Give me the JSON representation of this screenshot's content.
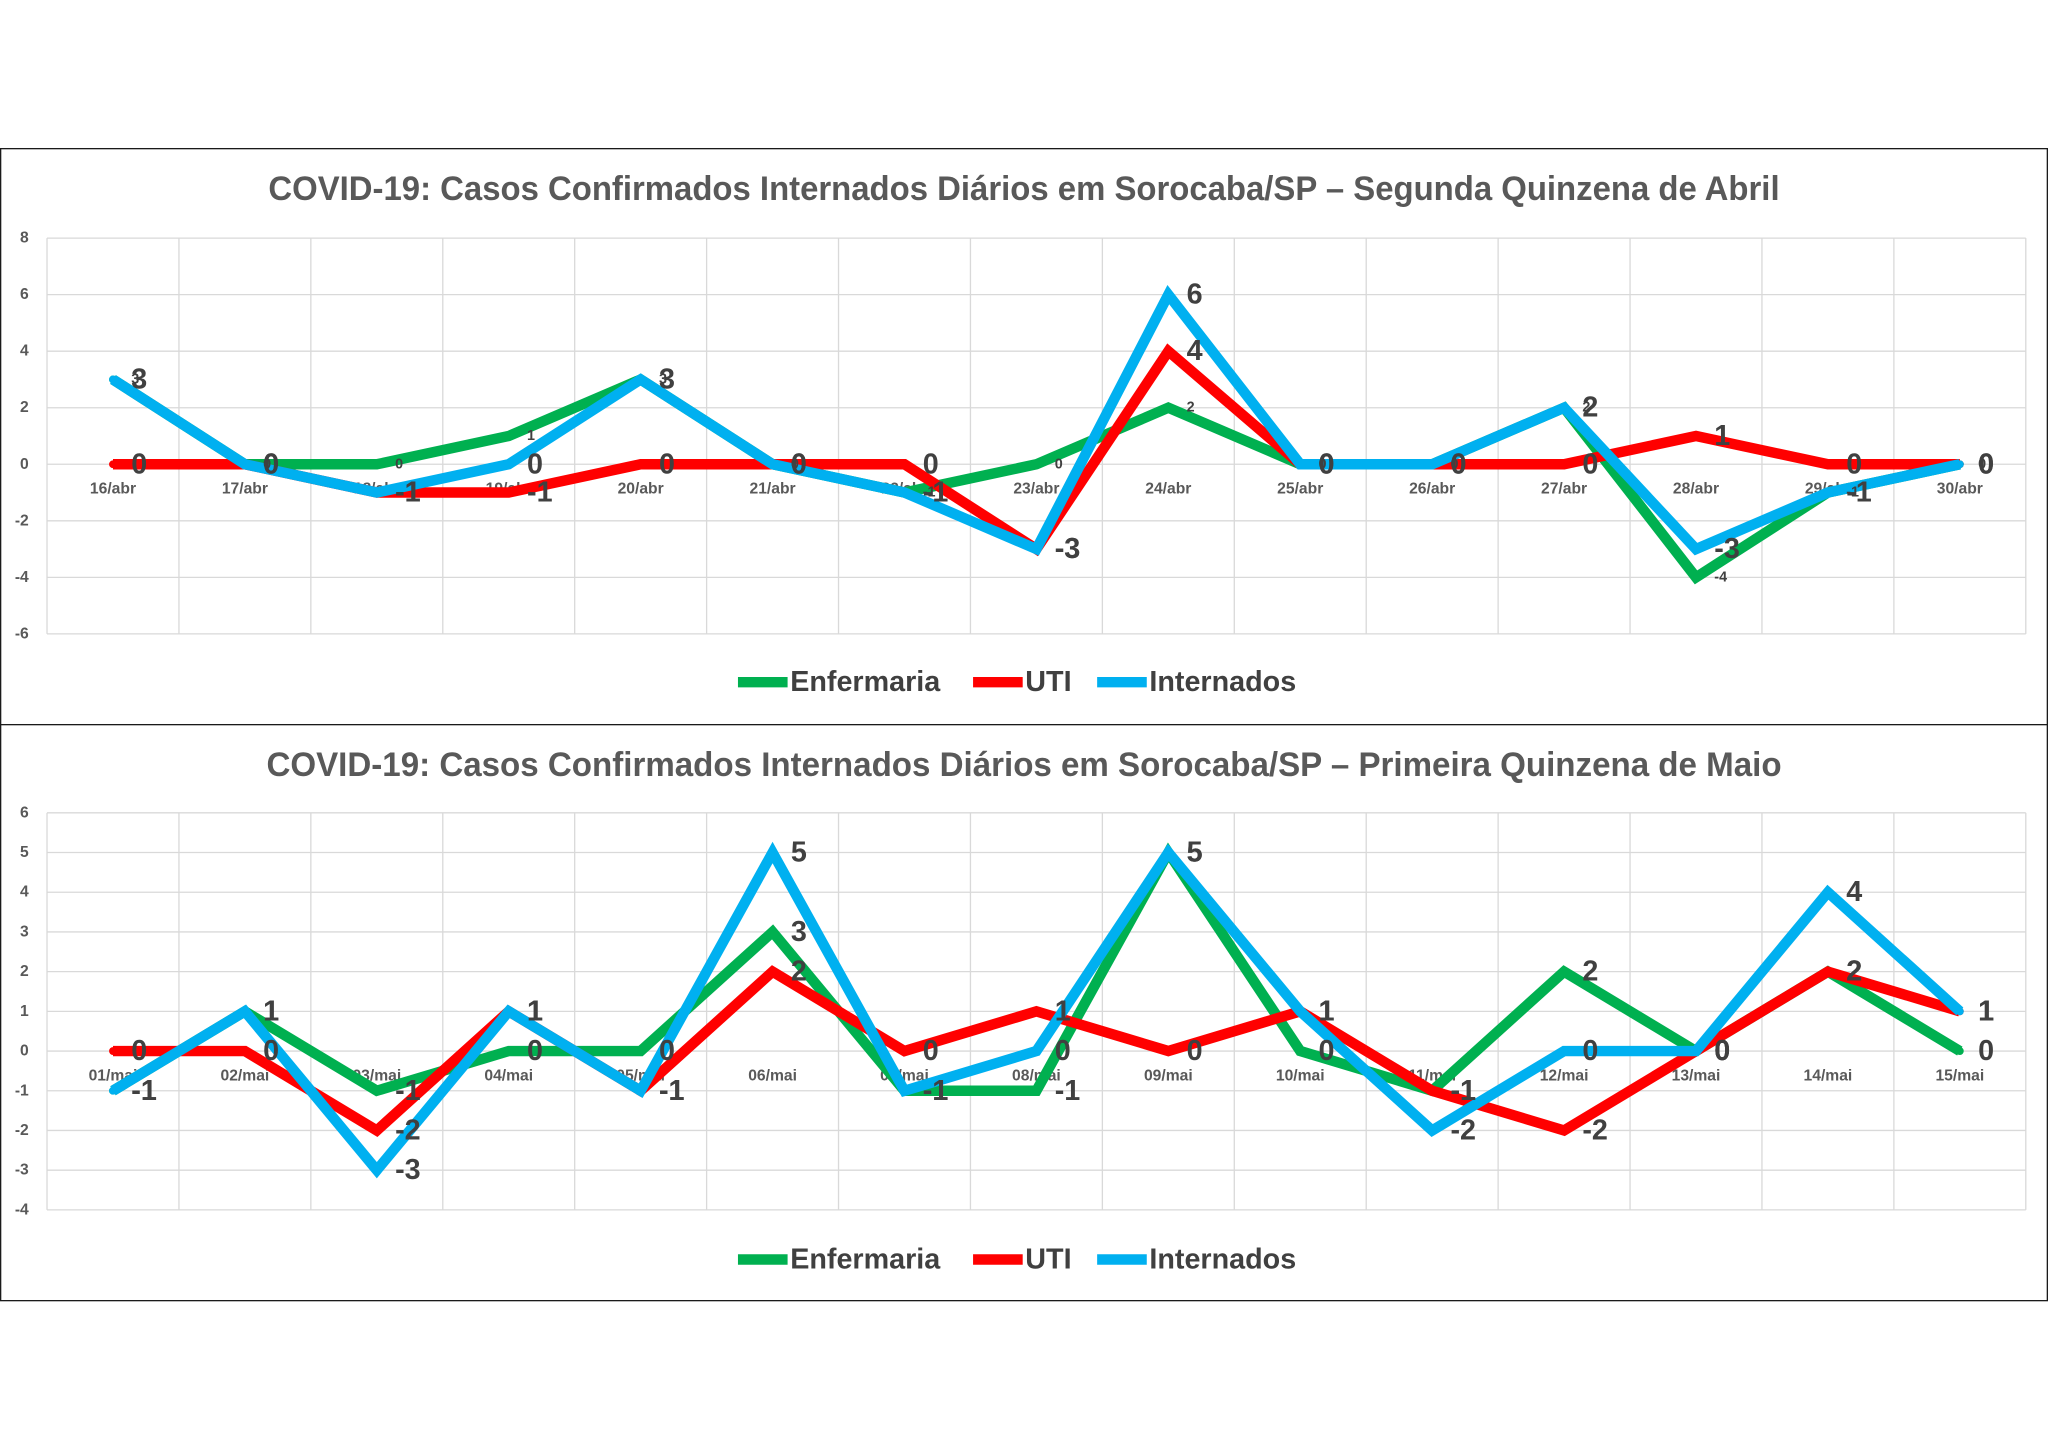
{
  "chart_data": [
    {
      "type": "line",
      "title": "COVID-19: Casos Confirmados Internados Diários em Sorocaba/SP – Segunda Quinzena de Abril",
      "categories": [
        "16/abr",
        "17/abr",
        "18/abr",
        "19/abr",
        "20/abr",
        "21/abr",
        "22/abr",
        "23/abr",
        "24/abr",
        "25/abr",
        "26/abr",
        "27/abr",
        "28/abr",
        "29/abr",
        "30/abr"
      ],
      "series": [
        {
          "name": "Enfermaria",
          "color": "#00B050",
          "values": [
            3,
            0,
            0,
            1,
            3,
            0,
            -1,
            0,
            2,
            0,
            0,
            2,
            -4,
            -1,
            0
          ]
        },
        {
          "name": "UTI",
          "color": "#FF0000",
          "values": [
            0,
            0,
            -1,
            -1,
            0,
            0,
            0,
            -3,
            4,
            0,
            0,
            0,
            1,
            0,
            0
          ]
        },
        {
          "name": "Internados",
          "color": "#00B0F0",
          "values": [
            3,
            0,
            -1,
            0,
            3,
            0,
            -1,
            -3,
            6,
            0,
            0,
            2,
            -3,
            -1,
            0
          ]
        }
      ],
      "ylim": [
        -6,
        8
      ],
      "yticks": [
        8,
        6,
        4,
        2,
        0,
        -2,
        -4,
        -6
      ]
    },
    {
      "type": "line",
      "title": "COVID-19: Casos Confirmados Internados Diários em Sorocaba/SP – Primeira Quinzena de Maio",
      "categories": [
        "01/mai",
        "02/mai",
        "03/mai",
        "04/mai",
        "05/mai",
        "06/mai",
        "07/mai",
        "08/mai",
        "09/mai",
        "10/mai",
        "11/mai",
        "12/mai",
        "13/mai",
        "14/mai",
        "15/mai"
      ],
      "series": [
        {
          "name": "Enfermaria",
          "color": "#00B050",
          "values": [
            -1,
            1,
            -1,
            0,
            0,
            3,
            -1,
            -1,
            5,
            0,
            -1,
            2,
            0,
            2,
            0
          ]
        },
        {
          "name": "UTI",
          "color": "#FF0000",
          "values": [
            0,
            0,
            -2,
            1,
            -1,
            2,
            0,
            1,
            0,
            1,
            -1,
            -2,
            0,
            2,
            1
          ]
        },
        {
          "name": "Internados",
          "color": "#00B0F0",
          "values": [
            -1,
            1,
            -3,
            1,
            -1,
            5,
            -1,
            0,
            5,
            1,
            -2,
            0,
            0,
            4,
            1
          ]
        }
      ],
      "ylim": [
        -4,
        6
      ],
      "yticks": [
        6,
        5,
        4,
        3,
        2,
        1,
        0,
        -1,
        -2,
        -3,
        -4
      ]
    }
  ]
}
